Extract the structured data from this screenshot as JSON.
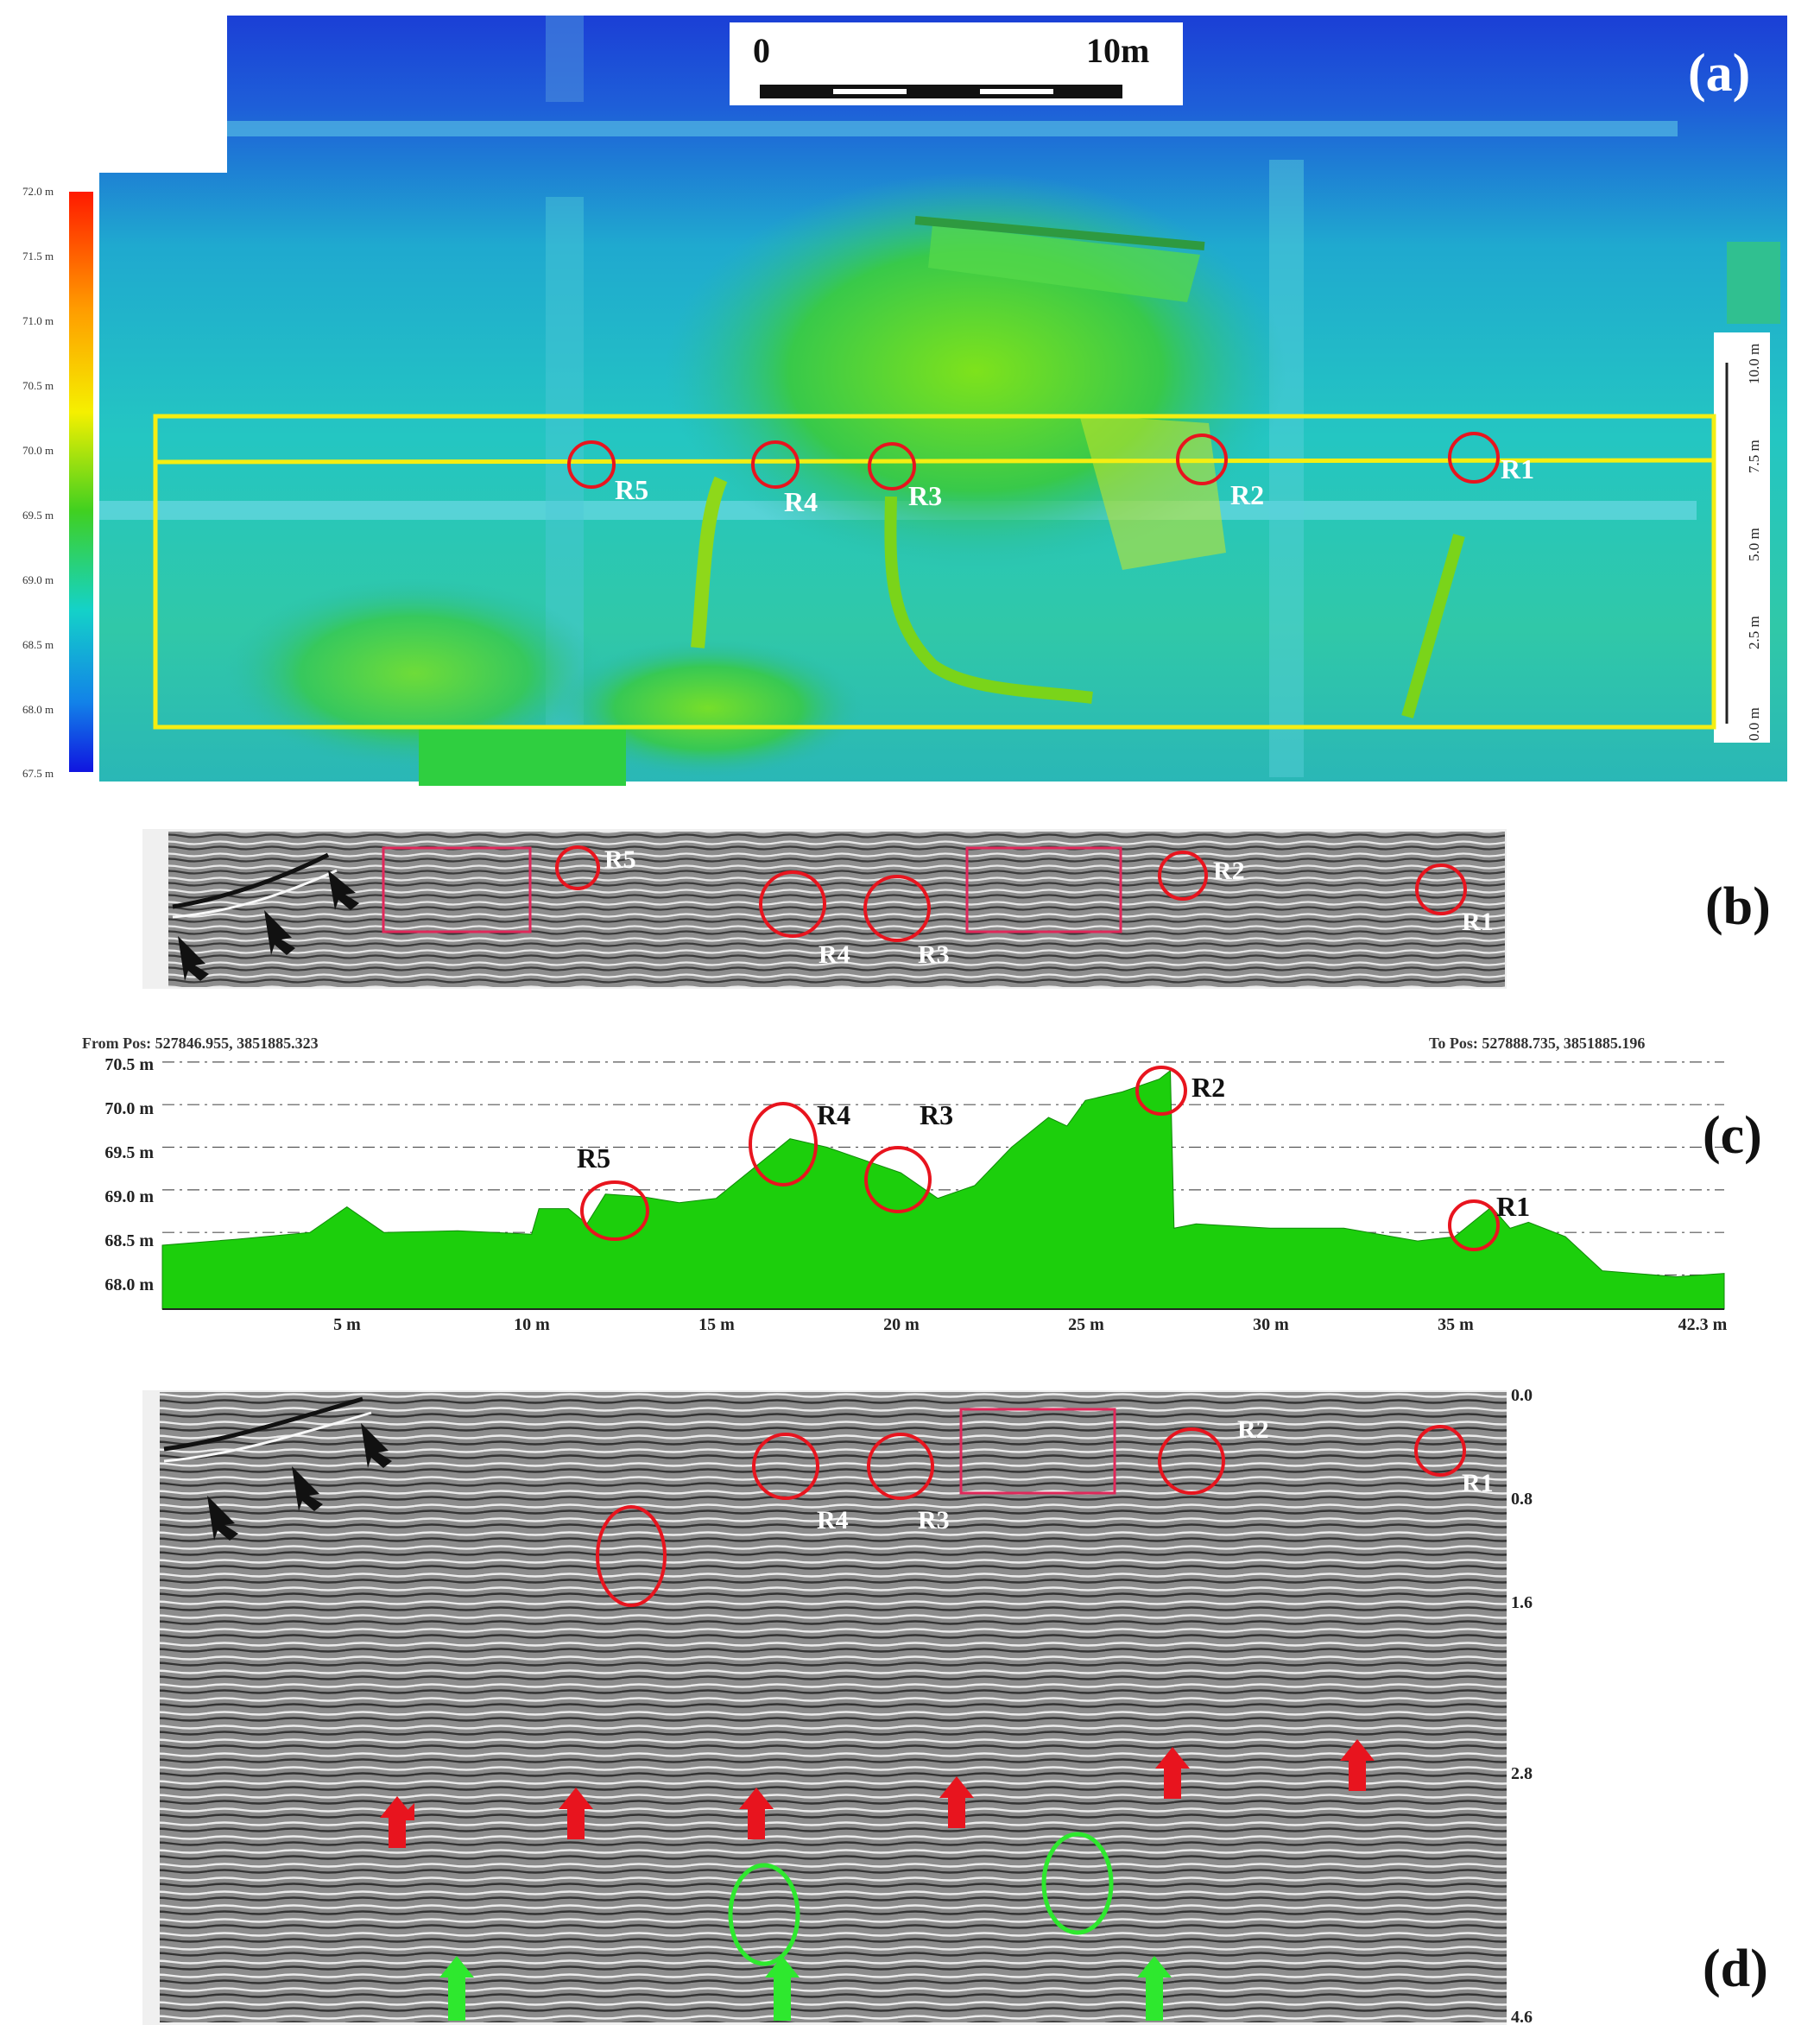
{
  "panel_labels": {
    "a": "(a)",
    "b": "(b)",
    "c": "(c)",
    "d": "(d)"
  },
  "scale_bar": {
    "start": "0",
    "end": "10m"
  },
  "colorbar": {
    "ticks": [
      "72.0 m",
      "71.5 m",
      "71.0 m",
      "70.5 m",
      "70.0 m",
      "69.5 m",
      "69.0 m",
      "68.5 m",
      "68.0 m",
      "67.5 m"
    ]
  },
  "local_scale": {
    "ticks": [
      "10.0 m",
      "7.5 m",
      "5.0 m",
      "2.5 m",
      "0.0 m"
    ]
  },
  "reflectors": {
    "r1": "R1",
    "r2": "R2",
    "r3": "R3",
    "r4": "R4",
    "r5": "R5"
  },
  "profile": {
    "from_pos": "From Pos: 527846.955, 3851885.323",
    "to_pos": "To Pos: 527888.735, 3851885.196",
    "y_ticks": [
      "70.5 m",
      "70.0 m",
      "69.5 m",
      "69.0 m",
      "68.5 m",
      "68.0 m"
    ],
    "x_ticks": [
      "5 m",
      "10 m",
      "15 m",
      "20 m",
      "25 m",
      "30 m",
      "35 m",
      "42.3 m"
    ]
  },
  "radargram_d": {
    "depth_ticks": [
      "0.0",
      "0.8",
      "1.6",
      "2.8",
      "4.6"
    ]
  },
  "colors": {
    "elevation_low": "#1a3fd8",
    "elevation_mid": "#22c8c0",
    "elevation_high": "#3fe02a",
    "profile_fill": "#1ccf0c",
    "annotation_red": "#e8141e",
    "annotation_green": "#2ee82e",
    "box_yellow": "#f4ee12",
    "box_magenta": "#e0285a"
  },
  "chart_data": {
    "type": "area",
    "title": "",
    "xlabel": "",
    "ylabel": "",
    "xlim": [
      0,
      42.3
    ],
    "ylim": [
      67.6,
      70.6
    ],
    "x": [
      0,
      2,
      4,
      5,
      6,
      8,
      10,
      10.2,
      11,
      11.5,
      12,
      13,
      14,
      15,
      16,
      17,
      18,
      19,
      20,
      21,
      22,
      23,
      24,
      24.5,
      25,
      26,
      27,
      27.3,
      27.4,
      28,
      30,
      32,
      34,
      35,
      36,
      36.5,
      37,
      38,
      39,
      41,
      42.3
    ],
    "series": [
      {
        "values": [
          68.35,
          68.42,
          68.5,
          68.8,
          68.5,
          68.52,
          68.48,
          68.78,
          68.78,
          68.6,
          68.95,
          68.92,
          68.85,
          68.9,
          69.25,
          69.6,
          69.5,
          69.35,
          69.2,
          68.9,
          69.05,
          69.5,
          69.85,
          69.75,
          70.05,
          70.15,
          70.3,
          70.4,
          68.55,
          68.6,
          68.55,
          68.55,
          68.4,
          68.45,
          68.8,
          68.55,
          68.62,
          68.45,
          68.05,
          67.98,
          68.02
        ]
      }
    ]
  }
}
